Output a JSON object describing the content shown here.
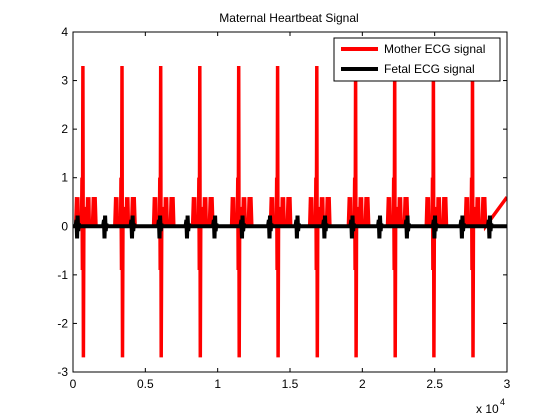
{
  "chart_data": {
    "type": "line",
    "title": "Maternal Heartbeat Signal",
    "xlabel": "",
    "ylabel": "",
    "x_multiplier_label": "x 10",
    "x_multiplier_exponent": "4",
    "xlim": [
      0,
      30000
    ],
    "ylim": [
      -3,
      4
    ],
    "x_ticks": [
      0,
      5000,
      10000,
      15000,
      20000,
      25000,
      30000
    ],
    "x_tick_labels": [
      "0",
      "0.5",
      "1",
      "1.5",
      "2",
      "2.5",
      "3"
    ],
    "y_ticks": [
      -3,
      -2,
      -1,
      0,
      1,
      2,
      3,
      4
    ],
    "y_tick_labels": [
      "-3",
      "-2",
      "-1",
      "0",
      "1",
      "2",
      "3",
      "4"
    ],
    "grid": false,
    "legend_position": "top-right",
    "series": [
      {
        "name": "Mother ECG signal",
        "color": "#ff0000",
        "beat_times": [
          710,
          3410,
          6090,
          8790,
          11480,
          14170,
          16880,
          19560,
          22260,
          24940,
          27640
        ],
        "r_peak": 3.3,
        "s_trough": -2.7,
        "p_wave": 0.6,
        "t_wave": 0.6,
        "baseline": 0.0
      },
      {
        "name": "Fetal ECG signal",
        "color": "#000000",
        "beat_times": [
          300,
          2200,
          4100,
          6000,
          7900,
          9800,
          11700,
          13600,
          15500,
          17400,
          19300,
          21200,
          23100,
          25000,
          26900,
          28800
        ],
        "peak": 0.22,
        "trough": -0.25,
        "baseline": 0.0
      }
    ]
  }
}
